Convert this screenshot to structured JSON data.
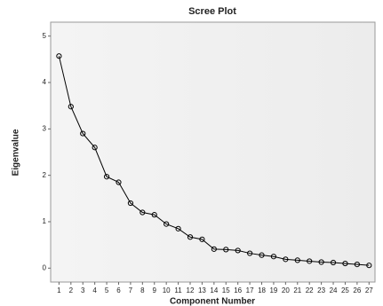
{
  "chart_data": {
    "type": "line",
    "title": "Scree Plot",
    "x_label": "Component Number",
    "y_label": "Eigenvalue",
    "x": [
      1,
      2,
      3,
      4,
      5,
      6,
      7,
      8,
      9,
      10,
      11,
      12,
      13,
      14,
      15,
      16,
      17,
      18,
      19,
      20,
      21,
      22,
      23,
      24,
      25,
      26,
      27
    ],
    "series": [
      {
        "name": "Eigenvalue",
        "color": "#000000",
        "values": [
          4.57,
          3.48,
          2.9,
          2.6,
          1.97,
          1.85,
          1.4,
          1.2,
          1.15,
          0.95,
          0.85,
          0.67,
          0.62,
          0.41,
          0.4,
          0.38,
          0.32,
          0.28,
          0.25,
          0.19,
          0.17,
          0.15,
          0.13,
          0.12,
          0.1,
          0.08,
          0.06
        ]
      }
    ],
    "xlim": [
      0.3,
      27.5
    ],
    "ylim": [
      -0.3,
      5.3
    ],
    "xticks": [
      1,
      2,
      3,
      4,
      5,
      6,
      7,
      8,
      9,
      10,
      11,
      12,
      13,
      14,
      15,
      16,
      17,
      18,
      19,
      20,
      21,
      22,
      23,
      24,
      25,
      26,
      27
    ],
    "yticks": [
      0,
      1,
      2,
      3,
      4,
      5
    ],
    "grid": false
  }
}
